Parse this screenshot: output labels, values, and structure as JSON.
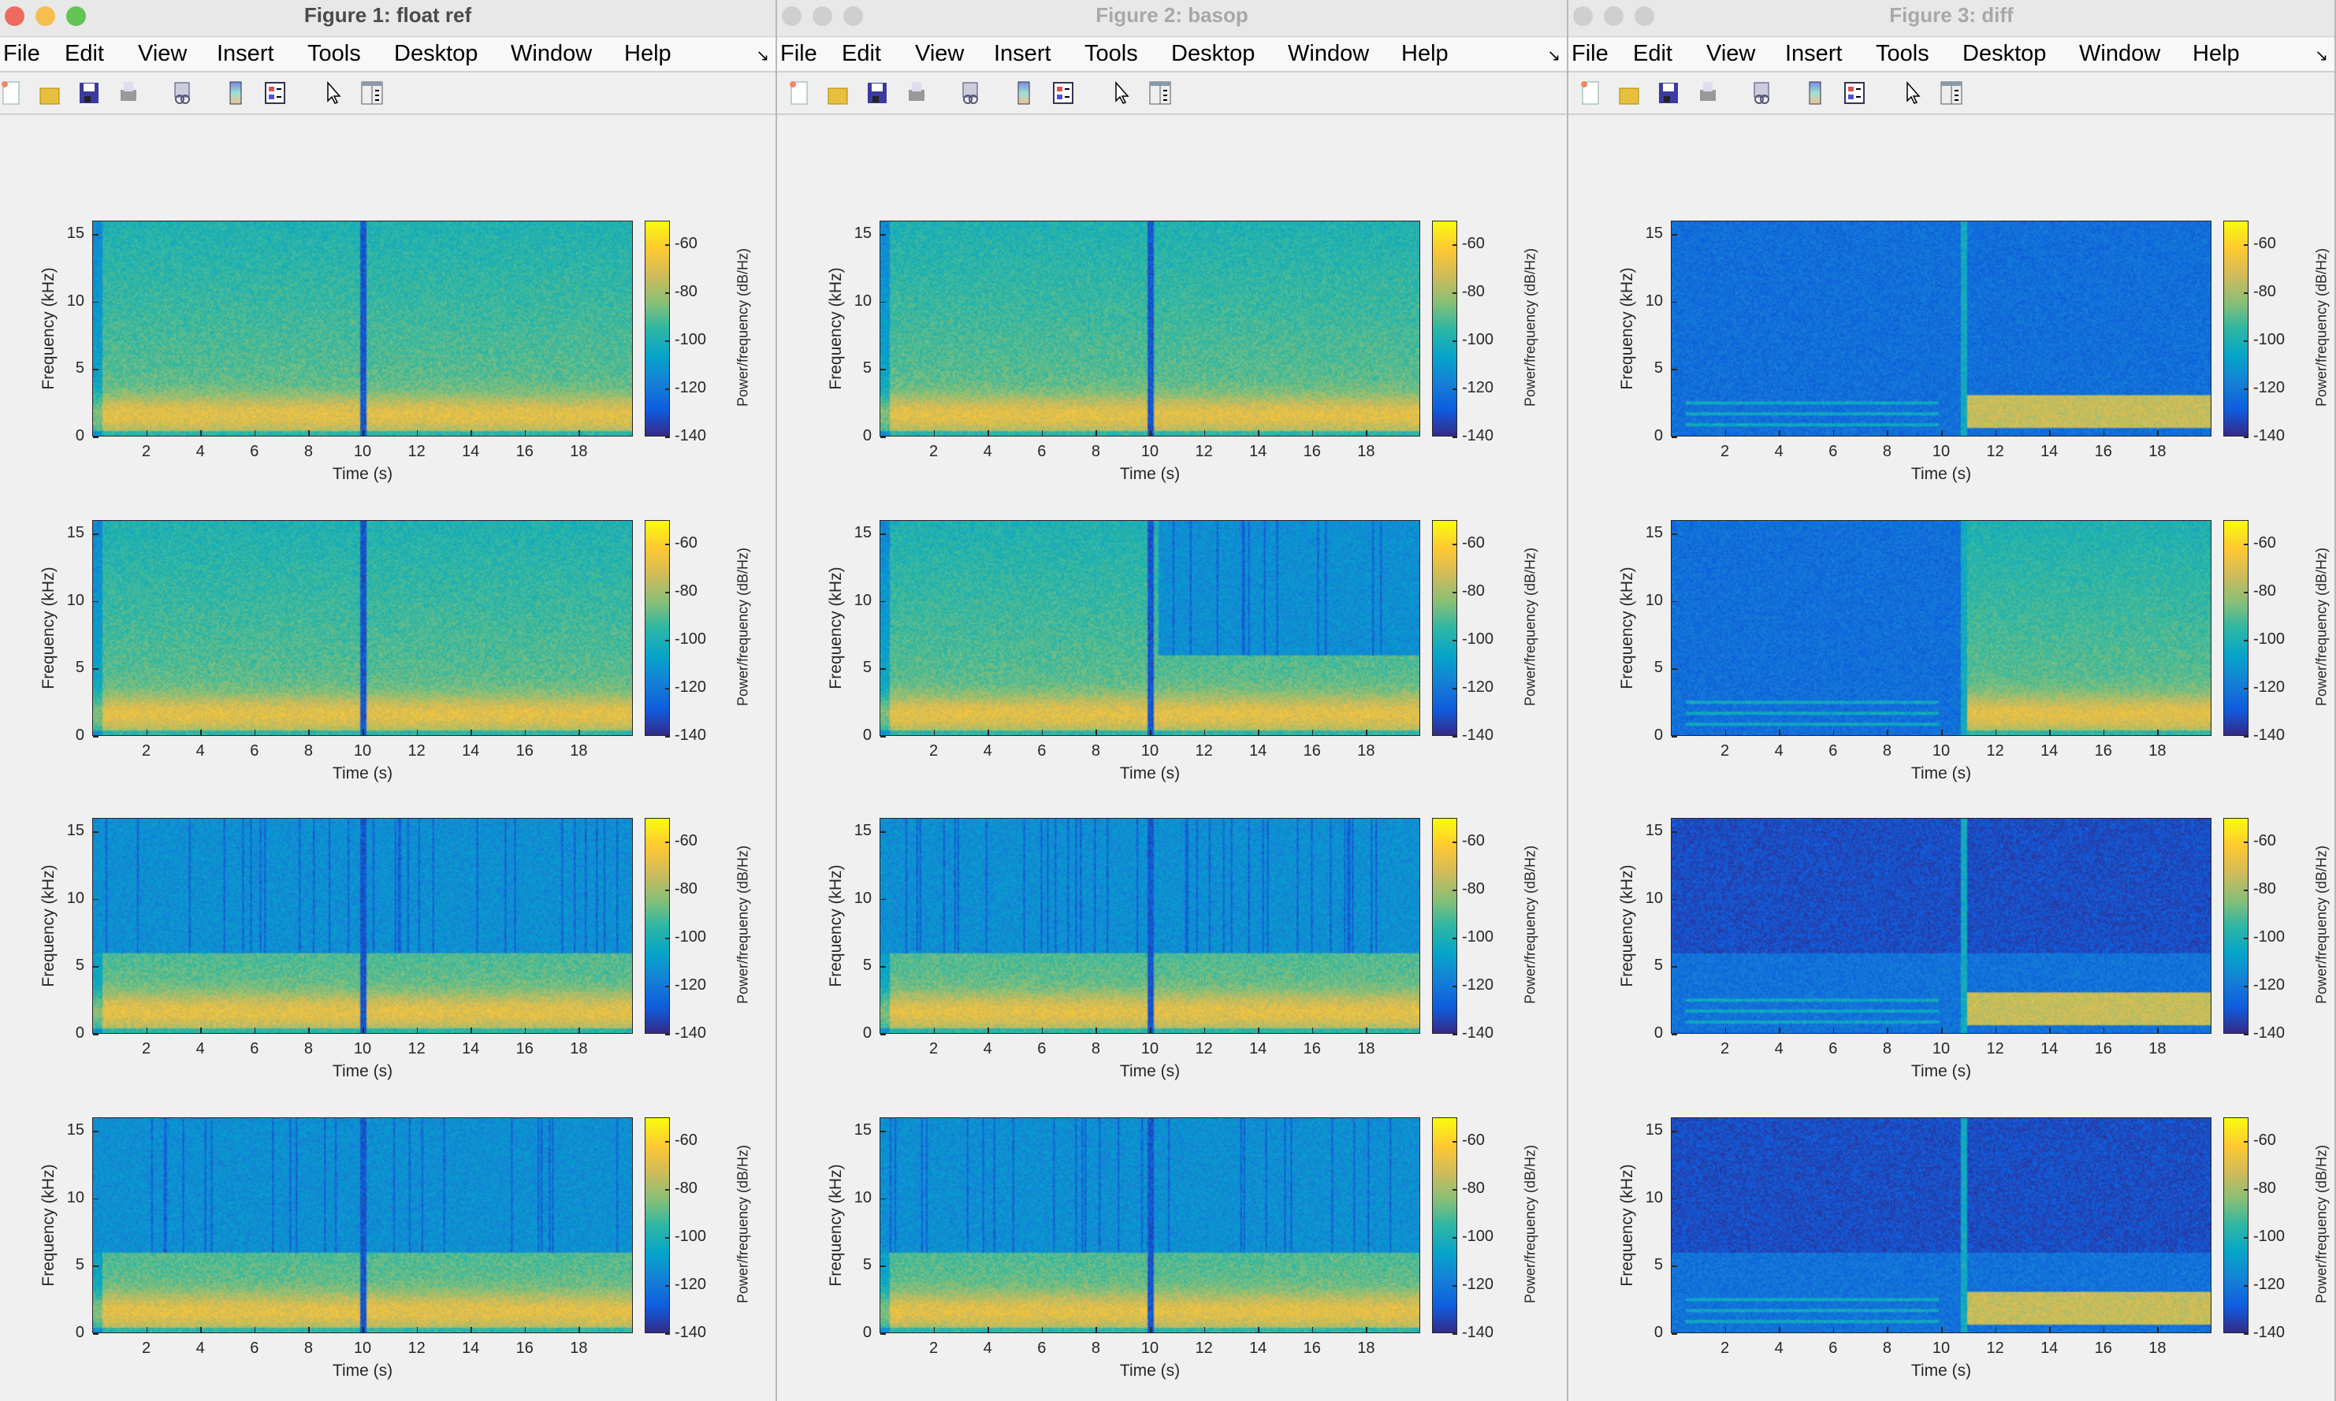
{
  "menu": [
    "File",
    "Edit",
    "View",
    "Insert",
    "Tools",
    "Desktop",
    "Window",
    "Help"
  ],
  "toolbar_icons": [
    "new-figure-icon",
    "open-file-icon",
    "save-icon",
    "print-icon",
    "link-plot-icon",
    "insert-colorbar-icon",
    "insert-legend-icon",
    "edit-plot-pointer-icon",
    "property-inspector-icon"
  ],
  "windows": [
    {
      "title": "Figure 1: float ref",
      "active": true
    },
    {
      "title": "Figure 2: basop",
      "active": false
    },
    {
      "title": "Figure 3: diff",
      "active": false
    }
  ],
  "colors": {
    "close": "#ee6a5f",
    "minimize": "#f5be4f",
    "zoom": "#61c454",
    "inactive_light": "#cfcfcf"
  },
  "chart_data": {
    "type": "heatmap",
    "colormap": "parula",
    "xlabel": "Time (s)",
    "ylabel": "Frequency (kHz)",
    "colorbar_label": "Power/frequency (dB/Hz)",
    "xlim": [
      0,
      20
    ],
    "ylim": [
      0,
      16
    ],
    "clim": [
      -140,
      -50
    ],
    "xticks": [
      2,
      4,
      6,
      8,
      10,
      12,
      14,
      16,
      18
    ],
    "yticks": [
      0,
      5,
      10,
      15
    ],
    "cticks": [
      -60,
      -80,
      -100,
      -120,
      -140
    ],
    "grid": false,
    "panels_per_figure": 4
  }
}
